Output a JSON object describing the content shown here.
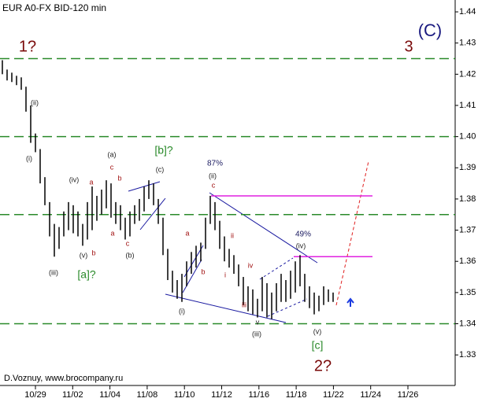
{
  "chart_data": {
    "type": "range",
    "title": "EUR A0-FX BID-120 min",
    "footer": "D.Voznuy,  www.brocompany.ru",
    "color": "#000000",
    "categories": [
      "10/29",
      "11/02",
      "11/04",
      "11/08",
      "11/10",
      "11/12",
      "11/16",
      "11/18",
      "11/22",
      "11/24",
      "11/26"
    ],
    "high": [
      1.4245,
      1.4215,
      1.4205,
      1.4195,
      1.419,
      1.416,
      1.41,
      1.401,
      1.396,
      1.387,
      1.379,
      1.372,
      1.371,
      1.376,
      1.379,
      1.378,
      1.376,
      1.372,
      1.379,
      1.384,
      1.381,
      1.383,
      1.386,
      1.385,
      1.379,
      1.378,
      1.374,
      1.376,
      1.378,
      1.38,
      1.384,
      1.386,
      1.385,
      1.38,
      1.374,
      1.364,
      1.357,
      1.354,
      1.356,
      1.36,
      1.363,
      1.365,
      1.366,
      1.374,
      1.381,
      1.379,
      1.373,
      1.368,
      1.364,
      1.362,
      1.359,
      1.355,
      1.352,
      1.351,
      1.348,
      1.355,
      1.353,
      1.35,
      1.353,
      1.356,
      1.354,
      1.357,
      1.36,
      1.362,
      1.356,
      1.352,
      1.35,
      1.349,
      1.352,
      1.351,
      1.35
    ],
    "low": [
      1.42,
      1.418,
      1.4175,
      1.4165,
      1.415,
      1.408,
      1.398,
      1.395,
      1.385,
      1.378,
      1.368,
      1.3615,
      1.364,
      1.368,
      1.37,
      1.369,
      1.368,
      1.365,
      1.367,
      1.37,
      1.373,
      1.375,
      1.377,
      1.374,
      1.372,
      1.37,
      1.367,
      1.368,
      1.372,
      1.373,
      1.376,
      1.38,
      1.378,
      1.372,
      1.362,
      1.354,
      1.35,
      1.348,
      1.347,
      1.352,
      1.356,
      1.358,
      1.36,
      1.364,
      1.372,
      1.37,
      1.364,
      1.36,
      1.358,
      1.356,
      1.352,
      1.346,
      1.344,
      1.343,
      1.342,
      1.344,
      1.342,
      1.3415,
      1.344,
      1.347,
      1.347,
      1.348,
      1.35,
      1.352,
      1.347,
      1.345,
      1.343,
      1.344,
      1.346,
      1.347,
      1.347
    ],
    "ylim": [
      1.3202,
      1.4438
    ],
    "yticks": [
      1.44,
      1.43,
      1.42,
      1.41,
      {
        "value": 1.4,
        "label": "1.40"
      },
      1.39,
      1.38,
      1.37,
      1.36,
      1.35,
      1.34,
      1.33
    ],
    "levels": [
      1.425,
      1.4,
      1.375,
      1.34
    ],
    "level_color": "#2a8a2a",
    "resistance": [
      1.381,
      1.3615
    ],
    "resistance_color": "#e020e0",
    "annotations": [
      "1?",
      "3",
      "(C)",
      "2?",
      "[b]?",
      "[a]?",
      "[c]",
      "87%",
      "49%",
      "(ii)",
      "(i)",
      "(iii)",
      "(iv)",
      "(v)",
      "b",
      "a",
      "(a)",
      "c",
      "b",
      "a",
      "c",
      "(b)",
      "(c)",
      "a",
      "b",
      "(i)",
      "(ii)",
      "c",
      "ii",
      "i",
      "iv",
      "iii",
      "v",
      "(iii)",
      "(iv)",
      "(v)"
    ]
  }
}
